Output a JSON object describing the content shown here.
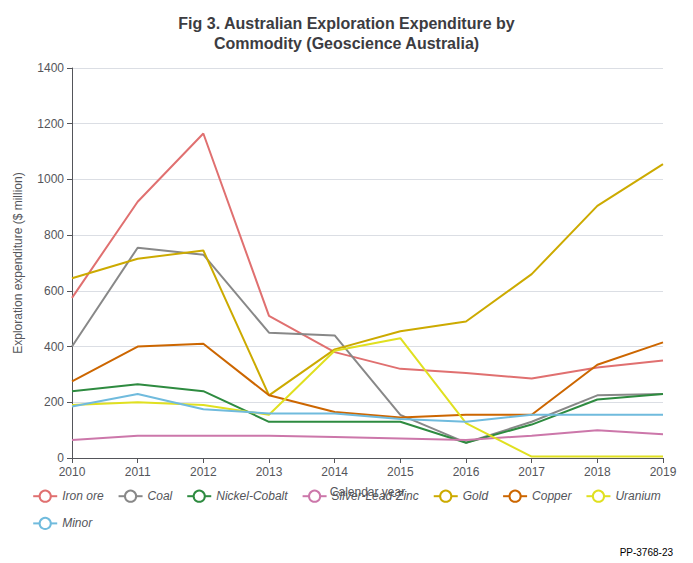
{
  "chart_data": {
    "type": "line",
    "title": "Fig 3. Australian Exploration Expenditure by\nCommodity (Geoscience Australia)",
    "xlabel": "Calendar year",
    "ylabel": "Exploration expenditure ($ million)",
    "x": [
      2010,
      2011,
      2012,
      2013,
      2014,
      2015,
      2016,
      2017,
      2018,
      2019
    ],
    "series": [
      {
        "name": "Iron ore",
        "color": "#e07070",
        "values": [
          575,
          920,
          1165,
          510,
          380,
          320,
          305,
          285,
          325,
          350
        ]
      },
      {
        "name": "Coal",
        "color": "#888888",
        "values": [
          400,
          755,
          730,
          450,
          440,
          155,
          55,
          130,
          225,
          230
        ]
      },
      {
        "name": "Nickel-Cobalt",
        "color": "#2e8b40",
        "values": [
          240,
          265,
          240,
          130,
          130,
          130,
          55,
          120,
          210,
          230
        ]
      },
      {
        "name": "Silver-Lead-Zinc",
        "color": "#cc77aa",
        "values": [
          65,
          80,
          80,
          80,
          75,
          70,
          65,
          80,
          100,
          85
        ]
      },
      {
        "name": "Gold",
        "color": "#ccaa00",
        "values": [
          645,
          715,
          745,
          225,
          390,
          455,
          490,
          660,
          905,
          1055
        ]
      },
      {
        "name": "Copper",
        "color": "#cc6600",
        "values": [
          275,
          400,
          410,
          225,
          165,
          145,
          155,
          155,
          335,
          415
        ]
      },
      {
        "name": "Uranium",
        "color": "#e0e020",
        "values": [
          190,
          200,
          190,
          155,
          385,
          430,
          125,
          5,
          5,
          5
        ]
      },
      {
        "name": "Minor",
        "color": "#70bbdd",
        "values": [
          185,
          230,
          175,
          160,
          160,
          140,
          130,
          155,
          155,
          155
        ]
      }
    ],
    "xlim": [
      2010,
      2019
    ],
    "xticks": [
      2010,
      2011,
      2012,
      2013,
      2014,
      2015,
      2016,
      2017,
      2018,
      2019
    ],
    "ylim": [
      0,
      1400
    ],
    "yticks": [
      0,
      200,
      400,
      600,
      800,
      1000,
      1200,
      1400
    ],
    "grid": true,
    "legend": "bottom",
    "annotations": [
      "PP-3768-23"
    ]
  }
}
